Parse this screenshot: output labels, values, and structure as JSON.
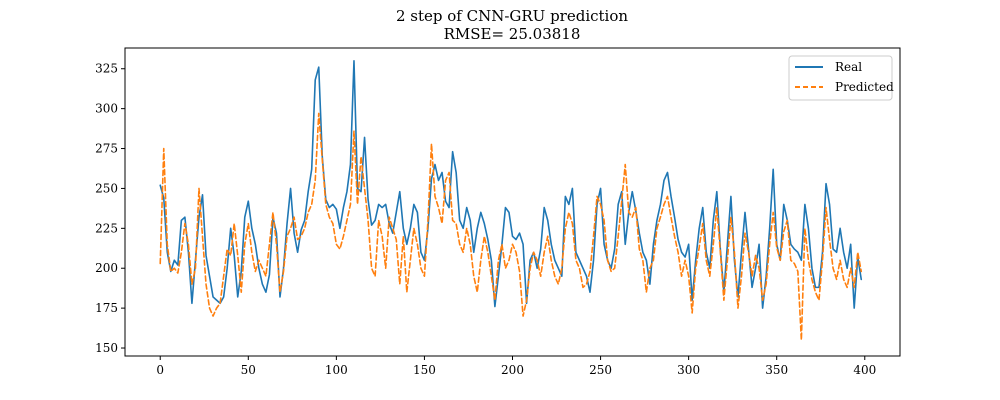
{
  "chart_data": {
    "type": "line",
    "title": "2 step of CNN-GRU prediction",
    "subtitle": "RMSE= 25.03818",
    "xlabel": "",
    "ylabel": "",
    "xlim": [
      -20,
      420
    ],
    "ylim": [
      145,
      338
    ],
    "xticks": [
      0,
      50,
      100,
      150,
      200,
      250,
      300,
      350,
      400
    ],
    "yticks": [
      150,
      175,
      200,
      225,
      250,
      275,
      300,
      325
    ],
    "legend_position": "top-right",
    "series": [
      {
        "name": "Real",
        "color": "#1f77b4",
        "style": "solid",
        "x": [
          0,
          2,
          4,
          6,
          8,
          10,
          12,
          14,
          16,
          18,
          20,
          22,
          24,
          26,
          28,
          30,
          32,
          34,
          36,
          38,
          40,
          42,
          44,
          46,
          48,
          50,
          52,
          54,
          56,
          58,
          60,
          62,
          64,
          66,
          68,
          70,
          72,
          74,
          76,
          78,
          80,
          82,
          84,
          86,
          88,
          90,
          92,
          94,
          96,
          98,
          100,
          102,
          104,
          106,
          108,
          110,
          112,
          114,
          116,
          118,
          120,
          122,
          124,
          126,
          128,
          130,
          132,
          134,
          136,
          138,
          140,
          142,
          144,
          146,
          148,
          150,
          152,
          154,
          156,
          158,
          160,
          162,
          164,
          166,
          168,
          170,
          172,
          174,
          176,
          178,
          180,
          182,
          184,
          186,
          188,
          190,
          192,
          194,
          196,
          198,
          200,
          202,
          204,
          206,
          208,
          210,
          212,
          214,
          216,
          218,
          220,
          222,
          224,
          226,
          228,
          230,
          232,
          234,
          236,
          238,
          240,
          242,
          244,
          246,
          248,
          250,
          252,
          254,
          256,
          258,
          260,
          262,
          264,
          266,
          268,
          270,
          272,
          274,
          276,
          278,
          280,
          282,
          284,
          286,
          288,
          290,
          292,
          294,
          296,
          298,
          300,
          302,
          304,
          306,
          308,
          310,
          312,
          314,
          316,
          318,
          320,
          322,
          324,
          326,
          328,
          330,
          332,
          334,
          336,
          338,
          340,
          342,
          344,
          346,
          348,
          350,
          352,
          354,
          356,
          358,
          360,
          362,
          364,
          366,
          368,
          370,
          372,
          374,
          376,
          378,
          380,
          382,
          384,
          386,
          388,
          390,
          392,
          394,
          396,
          398
        ],
        "values": [
          252,
          244,
          210,
          198,
          205,
          202,
          230,
          232,
          210,
          178,
          205,
          232,
          246,
          208,
          195,
          182,
          180,
          178,
          182,
          200,
          225,
          208,
          182,
          198,
          232,
          242,
          225,
          215,
          200,
          190,
          185,
          196,
          232,
          222,
          182,
          200,
          228,
          250,
          222,
          210,
          224,
          230,
          248,
          262,
          318,
          326,
          270,
          243,
          238,
          240,
          237,
          225,
          238,
          248,
          265,
          330,
          250,
          248,
          282,
          243,
          227,
          230,
          240,
          238,
          240,
          228,
          222,
          235,
          248,
          225,
          215,
          225,
          240,
          235,
          210,
          205,
          225,
          256,
          265,
          255,
          260,
          242,
          238,
          273,
          260,
          230,
          225,
          238,
          230,
          210,
          225,
          235,
          228,
          218,
          205,
          176,
          195,
          215,
          238,
          235,
          220,
          218,
          222,
          215,
          178,
          205,
          210,
          200,
          212,
          238,
          230,
          215,
          205,
          200,
          195,
          245,
          240,
          250,
          210,
          205,
          200,
          195,
          185,
          205,
          240,
          250,
          215,
          205,
          200,
          212,
          240,
          248,
          215,
          235,
          248,
          236,
          222,
          210,
          205,
          190,
          215,
          230,
          240,
          255,
          260,
          245,
          232,
          218,
          210,
          207,
          215,
          180,
          205,
          225,
          238,
          210,
          200,
          230,
          248,
          212,
          185,
          215,
          245,
          205,
          182,
          210,
          235,
          212,
          188,
          200,
          215,
          175,
          195,
          225,
          262,
          215,
          205,
          240,
          230,
          215,
          212,
          210,
          205,
          240,
          225,
          200,
          188,
          188,
          210,
          253,
          240,
          212,
          210,
          225,
          210,
          200,
          215,
          175,
          207,
          193
        ]
      },
      {
        "name": "Predicted",
        "color": "#ff7f0e",
        "style": "dashed",
        "x": [
          0,
          2,
          4,
          6,
          8,
          10,
          12,
          14,
          16,
          18,
          20,
          22,
          24,
          26,
          28,
          30,
          32,
          34,
          36,
          38,
          40,
          42,
          44,
          46,
          48,
          50,
          52,
          54,
          56,
          58,
          60,
          62,
          64,
          66,
          68,
          70,
          72,
          74,
          76,
          78,
          80,
          82,
          84,
          86,
          88,
          90,
          92,
          94,
          96,
          98,
          100,
          102,
          104,
          106,
          108,
          110,
          112,
          114,
          116,
          118,
          120,
          122,
          124,
          126,
          128,
          130,
          132,
          134,
          136,
          138,
          140,
          142,
          144,
          146,
          148,
          150,
          152,
          154,
          156,
          158,
          160,
          162,
          164,
          166,
          168,
          170,
          172,
          174,
          176,
          178,
          180,
          182,
          184,
          186,
          188,
          190,
          192,
          194,
          196,
          198,
          200,
          202,
          204,
          206,
          208,
          210,
          212,
          214,
          216,
          218,
          220,
          222,
          224,
          226,
          228,
          230,
          232,
          234,
          236,
          238,
          240,
          242,
          244,
          246,
          248,
          250,
          252,
          254,
          256,
          258,
          260,
          262,
          264,
          266,
          268,
          270,
          272,
          274,
          276,
          278,
          280,
          282,
          284,
          286,
          288,
          290,
          292,
          294,
          296,
          298,
          300,
          302,
          304,
          306,
          308,
          310,
          312,
          314,
          316,
          318,
          320,
          322,
          324,
          326,
          328,
          330,
          332,
          334,
          336,
          338,
          340,
          342,
          344,
          346,
          348,
          350,
          352,
          354,
          356,
          358,
          360,
          362,
          364,
          366,
          368,
          370,
          372,
          374,
          376,
          378,
          380,
          382,
          384,
          386,
          388,
          390,
          392,
          394,
          396,
          398
        ],
        "values": [
          203,
          275,
          215,
          198,
          200,
          197,
          210,
          228,
          215,
          190,
          200,
          250,
          220,
          190,
          175,
          170,
          175,
          178,
          195,
          212,
          208,
          228,
          208,
          185,
          215,
          228,
          210,
          198,
          205,
          200,
          195,
          215,
          235,
          215,
          185,
          198,
          220,
          225,
          232,
          218,
          220,
          225,
          235,
          240,
          255,
          297,
          268,
          240,
          232,
          228,
          215,
          212,
          220,
          230,
          240,
          286,
          240,
          270,
          250,
          230,
          200,
          195,
          230,
          220,
          200,
          232,
          225,
          218,
          190,
          220,
          185,
          205,
          225,
          215,
          200,
          195,
          230,
          278,
          245,
          238,
          228,
          255,
          260,
          230,
          228,
          215,
          210,
          225,
          215,
          195,
          185,
          205,
          220,
          210,
          195,
          180,
          205,
          215,
          200,
          205,
          215,
          210,
          198,
          170,
          180,
          200,
          210,
          205,
          195,
          210,
          220,
          205,
          195,
          190,
          200,
          225,
          235,
          228,
          205,
          200,
          188,
          190,
          198,
          220,
          245,
          240,
          230,
          205,
          198,
          200,
          220,
          242,
          265,
          235,
          232,
          238,
          212,
          205,
          185,
          200,
          205,
          225,
          232,
          240,
          245,
          232,
          220,
          210,
          195,
          205,
          195,
          172,
          200,
          213,
          228,
          205,
          195,
          215,
          238,
          210,
          180,
          205,
          232,
          210,
          175,
          195,
          222,
          210,
          195,
          208,
          200,
          180,
          190,
          215,
          235,
          213,
          205,
          223,
          230,
          205,
          203,
          198,
          155,
          225,
          205,
          193,
          185,
          180,
          205,
          238,
          218,
          200,
          193,
          205,
          193,
          188,
          200,
          188,
          210,
          198
        ]
      }
    ]
  }
}
